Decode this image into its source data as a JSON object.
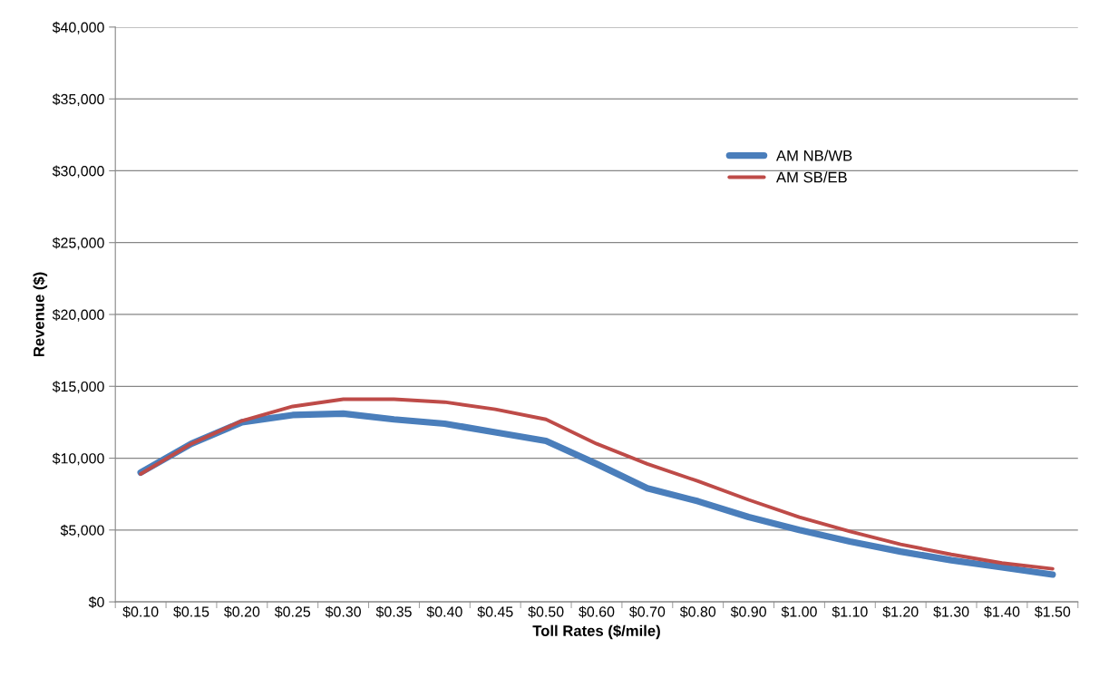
{
  "chart_data": {
    "type": "line",
    "xlabel": "Toll Rates ($/mile)",
    "ylabel": "Revenue ($)",
    "categories": [
      "$0.10",
      "$0.15",
      "$0.20",
      "$0.25",
      "$0.30",
      "$0.35",
      "$0.40",
      "$0.45",
      "$0.50",
      "$0.60",
      "$0.70",
      "$0.80",
      "$0.90",
      "$1.00",
      "$1.10",
      "$1.20",
      "$1.30",
      "$1.40",
      "$1.50"
    ],
    "series": [
      {
        "name": "AM NB/WB",
        "color": "#4a7ebb",
        "values": [
          9000,
          11000,
          12500,
          13000,
          13100,
          12700,
          12400,
          11800,
          11200,
          9600,
          7900,
          7000,
          5900,
          5000,
          4200,
          3500,
          2900,
          2400,
          1900
        ]
      },
      {
        "name": "AM SB/EB",
        "color": "#be4b48",
        "values": [
          8900,
          11000,
          12600,
          13600,
          14100,
          14100,
          13900,
          13400,
          12700,
          11000,
          9600,
          8400,
          7100,
          5900,
          4900,
          4000,
          3300,
          2700,
          2300
        ]
      }
    ],
    "ylim": [
      0,
      40000
    ],
    "yticks": [
      {
        "value": 0,
        "label": "$0"
      },
      {
        "value": 5000,
        "label": "$5,000"
      },
      {
        "value": 10000,
        "label": "$10,000"
      },
      {
        "value": 15000,
        "label": "$15,000"
      },
      {
        "value": 20000,
        "label": "$20,000"
      },
      {
        "value": 25000,
        "label": "$25,000"
      },
      {
        "value": 30000,
        "label": "$30,000"
      },
      {
        "value": 35000,
        "label": "$35,000"
      },
      {
        "value": 40000,
        "label": "$40,000"
      }
    ],
    "grid": "y",
    "legend": "top right",
    "marker": "none",
    "line_style": "solid"
  }
}
